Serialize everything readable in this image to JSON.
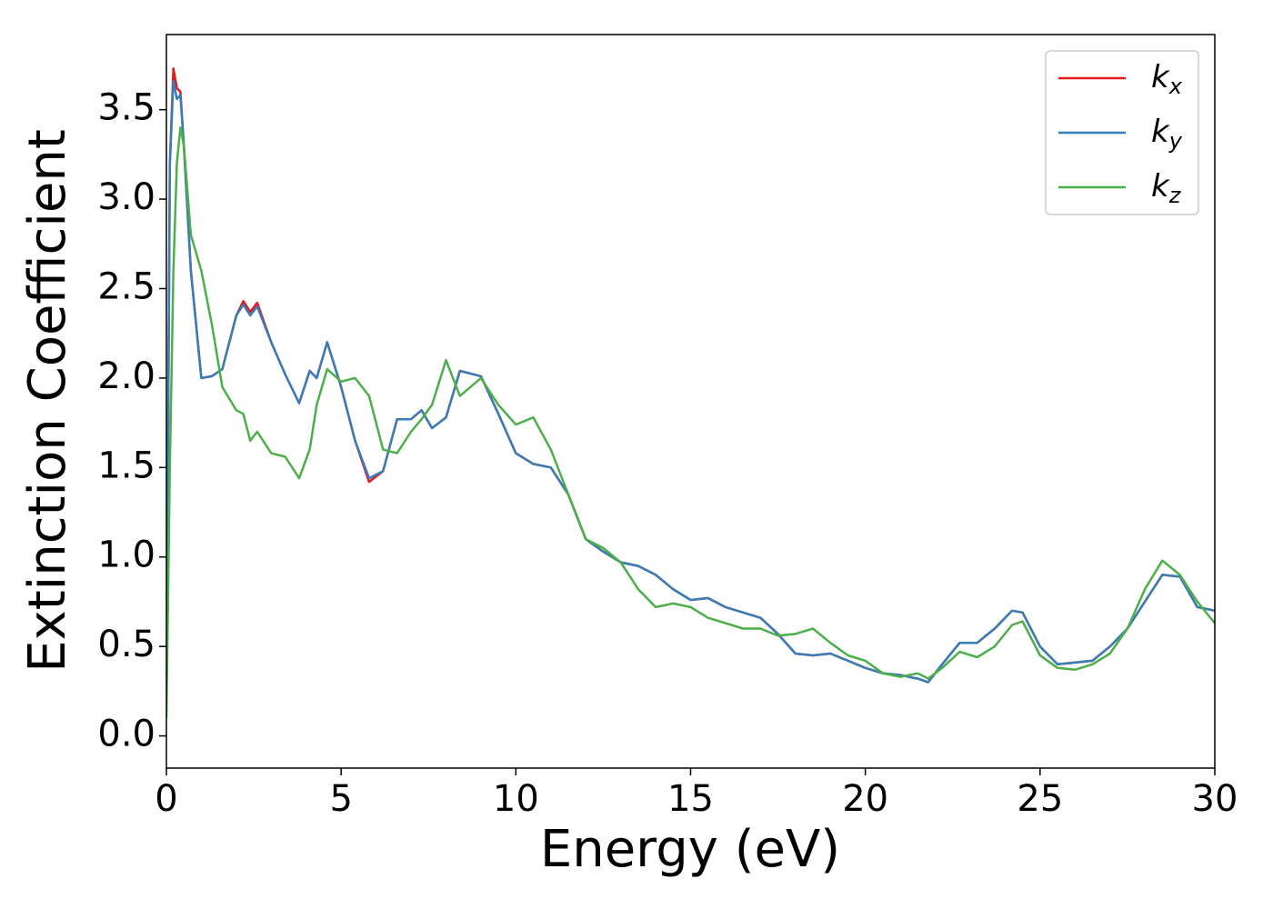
{
  "chart_data": {
    "type": "line",
    "xlabel": "Energy (eV)",
    "ylabel": "Extinction Coefficient",
    "x": [
      0,
      0.1,
      0.2,
      0.3,
      0.4,
      0.5,
      0.7,
      1.0,
      1.3,
      1.6,
      2.0,
      2.2,
      2.4,
      2.6,
      3.0,
      3.4,
      3.8,
      4.1,
      4.3,
      4.6,
      5.0,
      5.4,
      5.8,
      6.2,
      6.6,
      7.0,
      7.3,
      7.6,
      8.0,
      8.4,
      9.0,
      9.5,
      10.0,
      10.5,
      11.0,
      11.5,
      12.0,
      12.5,
      13.0,
      13.5,
      14.0,
      14.5,
      15.0,
      15.5,
      16.0,
      16.5,
      17.0,
      17.5,
      18.0,
      18.5,
      19.0,
      19.5,
      20.0,
      20.5,
      21.0,
      21.5,
      21.8,
      22.2,
      22.7,
      23.2,
      23.7,
      24.2,
      24.5,
      25.0,
      25.5,
      26.0,
      26.5,
      27.0,
      27.5,
      28.0,
      28.5,
      29.0,
      29.5,
      30.0
    ],
    "series": [
      {
        "name": "kx",
        "color": "#e41a1c",
        "values": [
          0.2,
          3.2,
          3.73,
          3.62,
          3.6,
          3.3,
          2.6,
          2.0,
          2.01,
          2.05,
          2.35,
          2.43,
          2.37,
          2.42,
          2.2,
          2.02,
          1.86,
          2.04,
          2.0,
          2.2,
          1.95,
          1.65,
          1.42,
          1.48,
          1.77,
          1.77,
          1.82,
          1.72,
          1.78,
          2.04,
          2.01,
          1.8,
          1.58,
          1.52,
          1.5,
          1.35,
          1.1,
          1.03,
          0.97,
          0.95,
          0.9,
          0.82,
          0.76,
          0.77,
          0.72,
          0.69,
          0.66,
          0.57,
          0.46,
          0.45,
          0.46,
          0.42,
          0.38,
          0.35,
          0.34,
          0.32,
          0.3,
          0.4,
          0.52,
          0.52,
          0.6,
          0.7,
          0.69,
          0.5,
          0.4,
          0.41,
          0.42,
          0.5,
          0.6,
          0.75,
          0.9,
          0.89,
          0.72,
          0.7
        ]
      },
      {
        "name": "ky",
        "color": "#377eb8",
        "values": [
          0.2,
          3.2,
          3.66,
          3.56,
          3.58,
          3.3,
          2.6,
          2.0,
          2.01,
          2.05,
          2.35,
          2.41,
          2.35,
          2.4,
          2.2,
          2.02,
          1.86,
          2.04,
          2.0,
          2.2,
          1.95,
          1.65,
          1.44,
          1.48,
          1.77,
          1.77,
          1.82,
          1.72,
          1.78,
          2.04,
          2.01,
          1.8,
          1.58,
          1.52,
          1.5,
          1.35,
          1.1,
          1.03,
          0.97,
          0.95,
          0.9,
          0.82,
          0.76,
          0.77,
          0.72,
          0.69,
          0.66,
          0.57,
          0.46,
          0.45,
          0.46,
          0.42,
          0.38,
          0.35,
          0.34,
          0.32,
          0.3,
          0.4,
          0.52,
          0.52,
          0.6,
          0.7,
          0.69,
          0.5,
          0.4,
          0.41,
          0.42,
          0.5,
          0.6,
          0.75,
          0.9,
          0.89,
          0.72,
          0.7
        ]
      },
      {
        "name": "kz",
        "color": "#4daf4a",
        "values": [
          0.1,
          1.5,
          2.6,
          3.2,
          3.4,
          3.3,
          2.8,
          2.6,
          2.3,
          1.95,
          1.82,
          1.8,
          1.65,
          1.7,
          1.58,
          1.56,
          1.44,
          1.6,
          1.85,
          2.05,
          1.98,
          2.0,
          1.9,
          1.6,
          1.58,
          1.7,
          1.77,
          1.85,
          2.1,
          1.9,
          2.0,
          1.85,
          1.74,
          1.78,
          1.6,
          1.35,
          1.1,
          1.05,
          0.97,
          0.82,
          0.72,
          0.74,
          0.72,
          0.66,
          0.63,
          0.6,
          0.6,
          0.56,
          0.57,
          0.6,
          0.52,
          0.45,
          0.42,
          0.35,
          0.33,
          0.35,
          0.32,
          0.38,
          0.47,
          0.44,
          0.5,
          0.62,
          0.64,
          0.45,
          0.38,
          0.37,
          0.4,
          0.46,
          0.6,
          0.82,
          0.98,
          0.9,
          0.75,
          0.63
        ]
      }
    ],
    "xlim": [
      0,
      30
    ],
    "xticks": [
      0,
      5,
      10,
      15,
      20,
      25,
      30
    ],
    "ylim": [
      -0.18,
      3.92
    ],
    "yticks": [
      {
        "value": 0,
        "label": "0.0"
      },
      0.5,
      {
        "value": 1,
        "label": "1.0"
      },
      1.5,
      {
        "value": 2,
        "label": "2.0"
      },
      2.5,
      {
        "value": 3,
        "label": "3.0"
      },
      3.5
    ],
    "legend": "upper right",
    "grid": false
  }
}
